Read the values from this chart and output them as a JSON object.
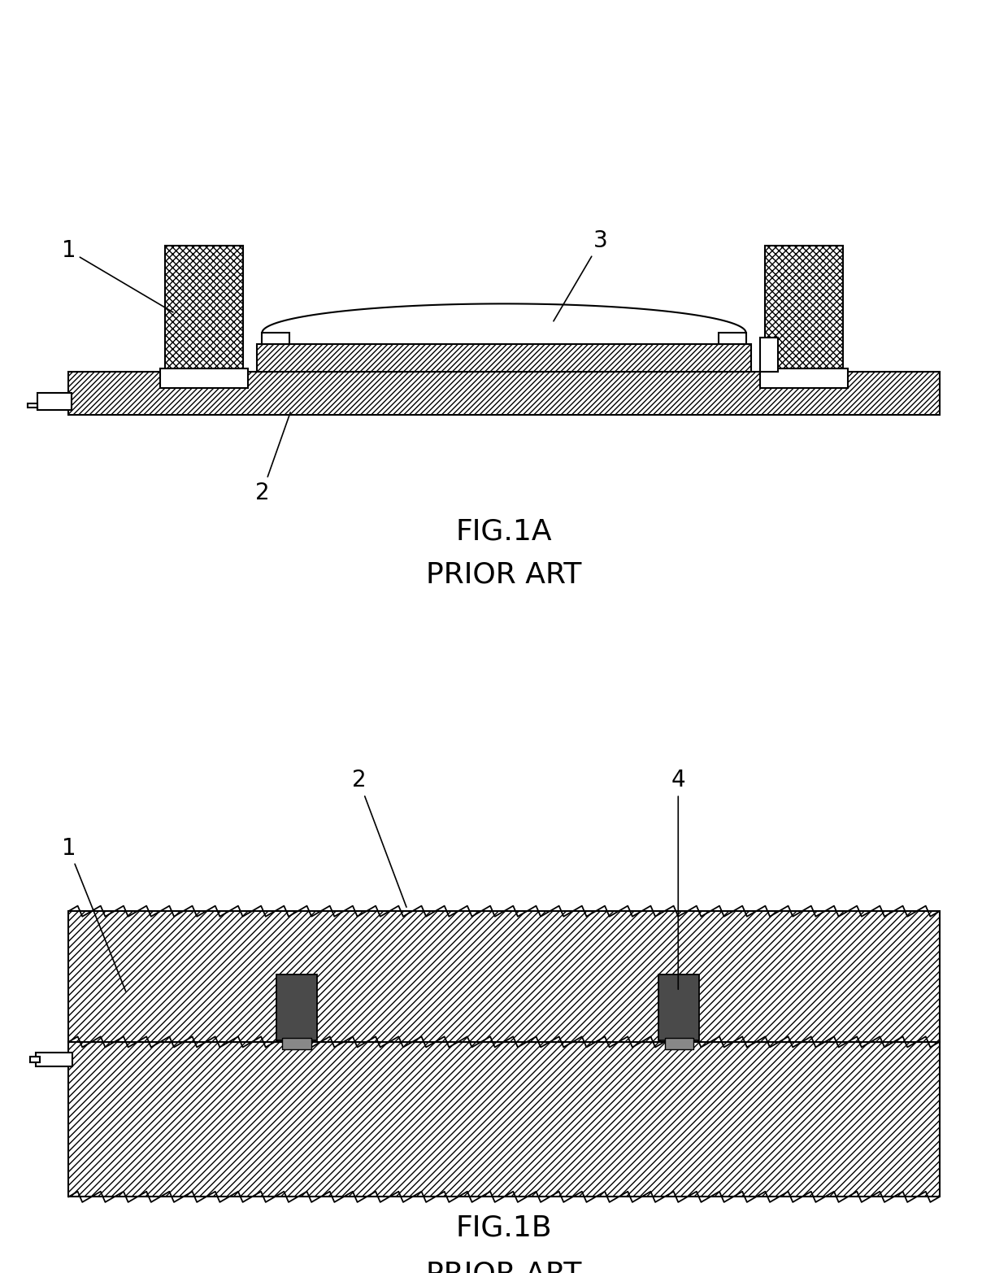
{
  "fig_width": 12.4,
  "fig_height": 15.65,
  "bg_color": "#ffffff",
  "fig1a_label": "FIG.1A",
  "fig1b_label": "FIG.1B",
  "prior_art": "PRIOR ART",
  "label_fontsize": 26,
  "prior_art_fontsize": 26,
  "annotation_fontsize": 20
}
